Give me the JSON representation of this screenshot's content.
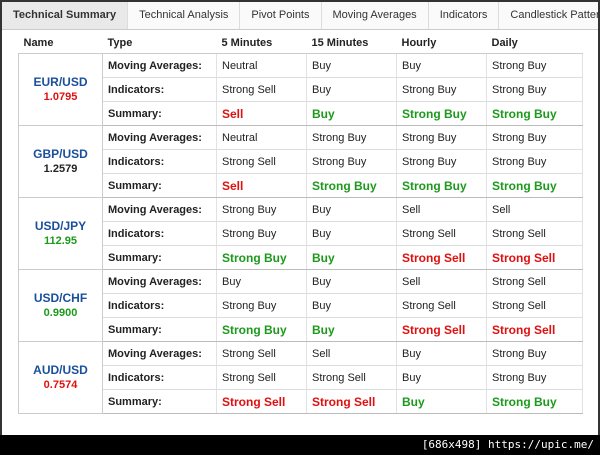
{
  "tabs": [
    "Technical Summary",
    "Technical Analysis",
    "Pivot Points",
    "Moving Averages",
    "Indicators",
    "Candlestick Patterns"
  ],
  "active_tab": 0,
  "table": {
    "headers": [
      "Name",
      "Type",
      "5 Minutes",
      "15 Minutes",
      "Hourly",
      "Daily"
    ],
    "groups": [
      {
        "name": "EUR/USD",
        "price": "1.0795",
        "price_color": "#e01010",
        "rows": [
          {
            "type": "Moving Averages:",
            "cells": [
              "Neutral",
              "Buy",
              "Buy",
              "Strong Buy"
            ]
          },
          {
            "type": "Indicators:",
            "cells": [
              "Strong Sell",
              "Buy",
              "Strong Buy",
              "Strong Buy"
            ]
          },
          {
            "type": "Summary:",
            "cells": [
              "Sell",
              "Buy",
              "Strong Buy",
              "Strong Buy"
            ],
            "colors": [
              "#e01010",
              "#1c9a1c",
              "#1c9a1c",
              "#1c9a1c"
            ]
          }
        ]
      },
      {
        "name": "GBP/USD",
        "price": "1.2579",
        "price_color": "#222222",
        "rows": [
          {
            "type": "Moving Averages:",
            "cells": [
              "Neutral",
              "Strong Buy",
              "Strong Buy",
              "Strong Buy"
            ]
          },
          {
            "type": "Indicators:",
            "cells": [
              "Strong Sell",
              "Strong Buy",
              "Strong Buy",
              "Strong Buy"
            ]
          },
          {
            "type": "Summary:",
            "cells": [
              "Sell",
              "Strong Buy",
              "Strong Buy",
              "Strong Buy"
            ],
            "colors": [
              "#e01010",
              "#1c9a1c",
              "#1c9a1c",
              "#1c9a1c"
            ]
          }
        ]
      },
      {
        "name": "USD/JPY",
        "price": "112.95",
        "price_color": "#1c9a1c",
        "rows": [
          {
            "type": "Moving Averages:",
            "cells": [
              "Strong Buy",
              "Buy",
              "Sell",
              "Sell"
            ]
          },
          {
            "type": "Indicators:",
            "cells": [
              "Strong Buy",
              "Buy",
              "Strong Sell",
              "Strong Sell"
            ]
          },
          {
            "type": "Summary:",
            "cells": [
              "Strong Buy",
              "Buy",
              "Strong Sell",
              "Strong Sell"
            ],
            "colors": [
              "#1c9a1c",
              "#1c9a1c",
              "#e01010",
              "#e01010"
            ]
          }
        ]
      },
      {
        "name": "USD/CHF",
        "price": "0.9900",
        "price_color": "#1c9a1c",
        "rows": [
          {
            "type": "Moving Averages:",
            "cells": [
              "Buy",
              "Buy",
              "Sell",
              "Strong Sell"
            ]
          },
          {
            "type": "Indicators:",
            "cells": [
              "Strong Buy",
              "Buy",
              "Strong Sell",
              "Strong Sell"
            ]
          },
          {
            "type": "Summary:",
            "cells": [
              "Strong Buy",
              "Buy",
              "Strong Sell",
              "Strong Sell"
            ],
            "colors": [
              "#1c9a1c",
              "#1c9a1c",
              "#e01010",
              "#e01010"
            ]
          }
        ]
      },
      {
        "name": "AUD/USD",
        "price": "0.7574",
        "price_color": "#e01010",
        "rows": [
          {
            "type": "Moving Averages:",
            "cells": [
              "Strong Sell",
              "Sell",
              "Buy",
              "Strong Buy"
            ]
          },
          {
            "type": "Indicators:",
            "cells": [
              "Strong Sell",
              "Strong Sell",
              "Buy",
              "Strong Buy"
            ]
          },
          {
            "type": "Summary:",
            "cells": [
              "Strong Sell",
              "Strong Sell",
              "Buy",
              "Strong Buy"
            ],
            "colors": [
              "#e01010",
              "#e01010",
              "#1c9a1c",
              "#1c9a1c"
            ]
          }
        ]
      }
    ]
  },
  "watermark": "[686x498] https://upic.me/"
}
